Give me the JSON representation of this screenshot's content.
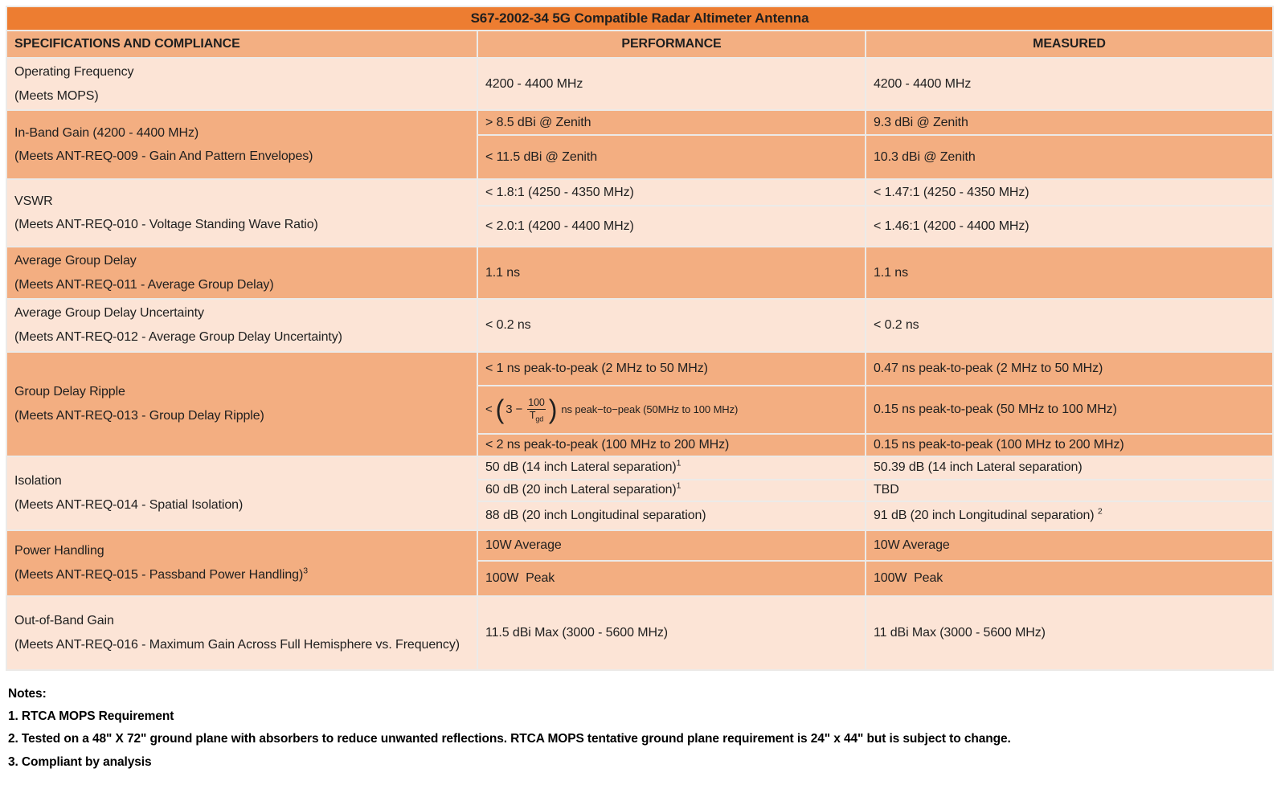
{
  "colors": {
    "title_bg": "#ED7D31",
    "header_bg": "#F3AF82",
    "row_dark": "#F3AE81",
    "row_light": "#FCE4D6",
    "grid": "#ECEAE8",
    "text": "#1F1F1F"
  },
  "table": {
    "title": "S67-2002-34 5G Compatible Radar Altimeter Antenna",
    "columns": [
      "SPECIFICATIONS AND COMPLIANCE",
      "PERFORMANCE",
      "MEASURED"
    ],
    "rows": [
      {
        "spec": [
          {
            "t": "Operating Frequency"
          },
          {
            "t": "(Meets MOPS)"
          }
        ],
        "subrows": [
          {
            "perf": {
              "t": "4200 - 4400 MHz"
            },
            "meas": {
              "t": "4200 - 4400 MHz"
            }
          }
        ]
      },
      {
        "spec": [
          {
            "t": "In-Band Gain (4200 - 4400 MHz)"
          },
          {
            "t": "(Meets ANT-REQ-009 - Gain And Pattern Envelopes)"
          }
        ],
        "subrows": [
          {
            "perf": {
              "t": "> 8.5 dBi @ Zenith"
            },
            "meas": {
              "t": "9.3 dBi @ Zenith"
            }
          },
          {
            "perf": {
              "t": "< 11.5 dBi @ Zenith"
            },
            "meas": {
              "t": "10.3 dBi @ Zenith"
            }
          }
        ]
      },
      {
        "spec": [
          {
            "t": "VSWR"
          },
          {
            "t": "(Meets ANT-REQ-010 - Voltage Standing Wave Ratio)"
          }
        ],
        "subrows": [
          {
            "perf": {
              "t": "< 1.8:1 (4250 - 4350 MHz)"
            },
            "meas": {
              "t": "< 1.47:1 (4250 - 4350 MHz)"
            }
          },
          {
            "perf": {
              "t": "< 2.0:1 (4200 - 4400 MHz)"
            },
            "meas": {
              "t": "< 1.46:1 (4200 - 4400 MHz)"
            }
          }
        ]
      },
      {
        "spec": [
          {
            "t": "Average Group Delay"
          },
          {
            "t": "(Meets ANT-REQ-011 - Average Group Delay)"
          }
        ],
        "subrows": [
          {
            "perf": {
              "t": "1.1 ns"
            },
            "meas": {
              "t": "1.1 ns"
            }
          }
        ]
      },
      {
        "spec": [
          {
            "t": "Average Group Delay Uncertainty"
          },
          {
            "t": "(Meets ANT-REQ-012 - Average Group Delay Uncertainty)"
          }
        ],
        "subrows": [
          {
            "perf": {
              "t": "< 0.2 ns"
            },
            "meas": {
              "t": "< 0.2 ns"
            }
          }
        ]
      },
      {
        "spec": [
          {
            "t": "Group Delay Ripple"
          },
          {
            "t": "(Meets ANT-REQ-013 - Group Delay Ripple)"
          }
        ],
        "subrows": [
          {
            "perf": {
              "t": "< 1 ns peak-to-peak (2 MHz to 50 MHz)"
            },
            "meas": {
              "t": "0.47 ns peak-to-peak (2 MHz to 50 MHz)"
            }
          },
          {
            "perf": {
              "formula": {
                "lt": "<",
                "lhs": "3 −",
                "num": "100",
                "den_base": "T",
                "den_sub": "gd",
                "tail": "ns peak−to−peak (50MHz to 100 MHz)"
              }
            },
            "meas": {
              "t": "0.15 ns peak-to-peak (50 MHz to 100 MHz)"
            }
          },
          {
            "perf": {
              "t": "< 2 ns peak-to-peak (100 MHz to 200 MHz)"
            },
            "meas": {
              "t": "0.15 ns peak-to-peak (100 MHz to 200 MHz)"
            }
          }
        ]
      },
      {
        "spec": [
          {
            "t": "Isolation"
          },
          {
            "t": "(Meets ANT-REQ-014 - Spatial Isolation)"
          }
        ],
        "subrows": [
          {
            "perf": {
              "t": "50 dB (14 inch Lateral separation)",
              "sup": "1"
            },
            "meas": {
              "t": "50.39 dB (14 inch Lateral separation)"
            }
          },
          {
            "perf": {
              "t": "60 dB (20 inch Lateral separation)",
              "sup": "1"
            },
            "meas": {
              "t": "TBD"
            }
          },
          {
            "perf": {
              "t": "88 dB (20 inch Longitudinal separation)"
            },
            "meas": {
              "t": "91 dB (20 inch Longitudinal separation) ",
              "sup": "2"
            }
          }
        ]
      },
      {
        "spec": [
          {
            "t": "Power Handling"
          },
          {
            "t": "(Meets ANT-REQ-015 - Passband Power Handling)",
            "sup": "3"
          }
        ],
        "subrows": [
          {
            "perf": {
              "t": "10W Average"
            },
            "meas": {
              "t": "10W Average"
            }
          },
          {
            "perf": {
              "t": "100W  Peak"
            },
            "meas": {
              "t": "100W  Peak"
            }
          }
        ]
      },
      {
        "spec": [
          {
            "t": "Out-of-Band Gain"
          },
          {
            "t": "(Meets ANT-REQ-016 - Maximum Gain Across Full Hemisphere vs. Frequency)"
          }
        ],
        "subrows": [
          {
            "perf": {
              "t": "11.5 dBi Max (3000 - 5600 MHz)"
            },
            "meas": {
              "t": "11 dBi Max (3000 - 5600 MHz)"
            }
          }
        ]
      }
    ]
  },
  "notes": {
    "heading": "Notes:",
    "items": [
      "1. RTCA MOPS Requirement",
      "2. Tested on a 48\" X 72\" ground plane with absorbers to reduce unwanted reflections. RTCA MOPS tentative ground plane requirement is 24\" x 44\" but is subject to change.",
      "3. Compliant by analysis"
    ]
  }
}
